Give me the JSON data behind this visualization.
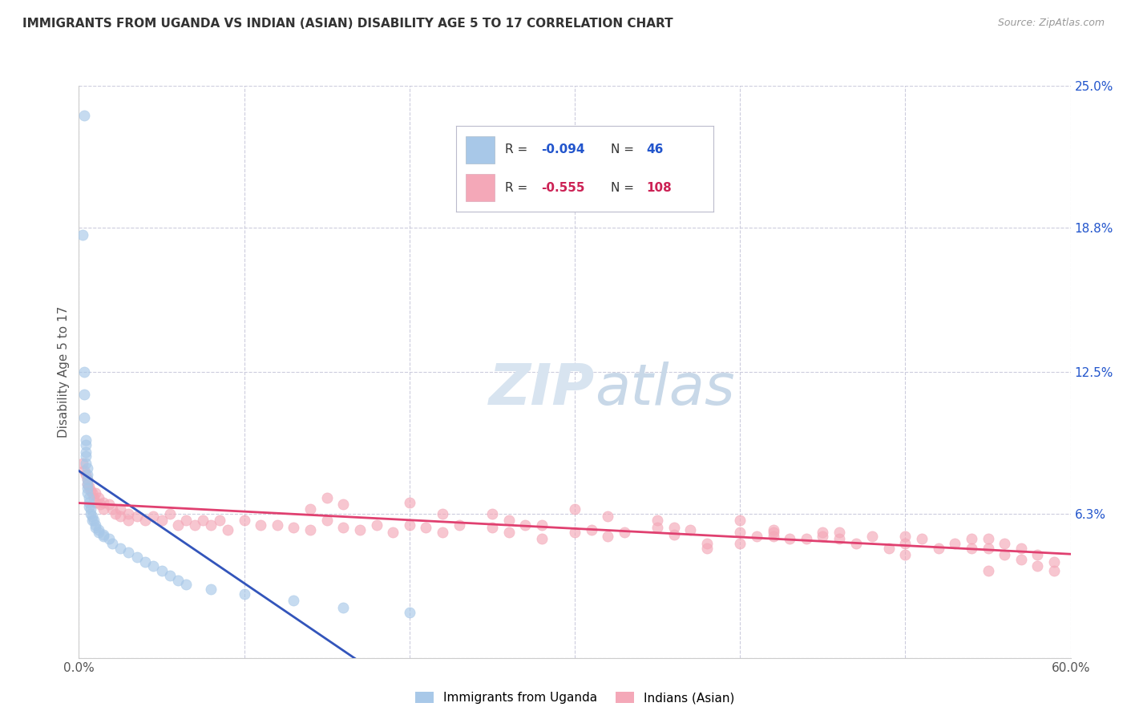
{
  "title": "IMMIGRANTS FROM UGANDA VS INDIAN (ASIAN) DISABILITY AGE 5 TO 17 CORRELATION CHART",
  "source": "Source: ZipAtlas.com",
  "ylabel": "Disability Age 5 to 17",
  "xmin": 0.0,
  "xmax": 0.6,
  "ymin": 0.0,
  "ymax": 0.25,
  "ytick_vals": [
    0.0,
    0.063,
    0.125,
    0.188,
    0.25
  ],
  "ytick_labels_right": [
    "",
    "6.3%",
    "12.5%",
    "18.8%",
    "25.0%"
  ],
  "xtick_vals": [
    0.0,
    0.1,
    0.2,
    0.3,
    0.4,
    0.5,
    0.6
  ],
  "xtick_labels": [
    "0.0%",
    "",
    "",
    "",
    "",
    "",
    "60.0%"
  ],
  "color_uganda": "#a8c8e8",
  "color_india": "#f4a8b8",
  "color_line_uganda": "#3355bb",
  "color_line_india": "#e04070",
  "color_line_dashed": "#aabbd0",
  "background_color": "#ffffff",
  "grid_color": "#ccccdd",
  "watermark_color": "#d8e4f0",
  "legend_r1_val": "-0.094",
  "legend_n1_val": "46",
  "legend_r2_val": "-0.555",
  "legend_n2_val": "108",
  "uganda_x": [
    0.003,
    0.002,
    0.003,
    0.003,
    0.003,
    0.004,
    0.004,
    0.004,
    0.004,
    0.004,
    0.005,
    0.005,
    0.005,
    0.005,
    0.005,
    0.005,
    0.006,
    0.006,
    0.006,
    0.007,
    0.007,
    0.008,
    0.008,
    0.009,
    0.01,
    0.01,
    0.012,
    0.012,
    0.015,
    0.015,
    0.018,
    0.02,
    0.025,
    0.03,
    0.035,
    0.04,
    0.045,
    0.05,
    0.055,
    0.06,
    0.065,
    0.08,
    0.1,
    0.13,
    0.16,
    0.2
  ],
  "uganda_y": [
    0.237,
    0.185,
    0.125,
    0.115,
    0.105,
    0.095,
    0.093,
    0.09,
    0.088,
    0.085,
    0.083,
    0.08,
    0.078,
    0.076,
    0.074,
    0.072,
    0.07,
    0.068,
    0.066,
    0.065,
    0.063,
    0.062,
    0.06,
    0.06,
    0.058,
    0.057,
    0.056,
    0.055,
    0.054,
    0.053,
    0.052,
    0.05,
    0.048,
    0.046,
    0.044,
    0.042,
    0.04,
    0.038,
    0.036,
    0.034,
    0.032,
    0.03,
    0.028,
    0.025,
    0.022,
    0.02
  ],
  "india_x": [
    0.002,
    0.003,
    0.004,
    0.005,
    0.005,
    0.006,
    0.007,
    0.008,
    0.009,
    0.01,
    0.01,
    0.012,
    0.013,
    0.015,
    0.015,
    0.018,
    0.02,
    0.022,
    0.025,
    0.025,
    0.03,
    0.03,
    0.035,
    0.04,
    0.045,
    0.05,
    0.055,
    0.06,
    0.065,
    0.07,
    0.075,
    0.08,
    0.085,
    0.09,
    0.1,
    0.11,
    0.12,
    0.13,
    0.14,
    0.15,
    0.16,
    0.17,
    0.18,
    0.19,
    0.2,
    0.21,
    0.22,
    0.23,
    0.25,
    0.26,
    0.27,
    0.28,
    0.3,
    0.31,
    0.32,
    0.33,
    0.35,
    0.36,
    0.37,
    0.38,
    0.4,
    0.41,
    0.42,
    0.43,
    0.45,
    0.46,
    0.47,
    0.48,
    0.49,
    0.5,
    0.5,
    0.51,
    0.52,
    0.53,
    0.54,
    0.54,
    0.55,
    0.55,
    0.56,
    0.56,
    0.57,
    0.57,
    0.58,
    0.58,
    0.59,
    0.59,
    0.4,
    0.42,
    0.44,
    0.3,
    0.32,
    0.2,
    0.22,
    0.15,
    0.16,
    0.35,
    0.36,
    0.45,
    0.46,
    0.25,
    0.26,
    0.28,
    0.14,
    0.5,
    0.55,
    0.38,
    0.4,
    0.42
  ],
  "india_y": [
    0.085,
    0.082,
    0.08,
    0.078,
    0.076,
    0.075,
    0.073,
    0.072,
    0.07,
    0.072,
    0.068,
    0.07,
    0.067,
    0.068,
    0.065,
    0.067,
    0.065,
    0.063,
    0.065,
    0.062,
    0.063,
    0.06,
    0.062,
    0.06,
    0.062,
    0.06,
    0.063,
    0.058,
    0.06,
    0.058,
    0.06,
    0.058,
    0.06,
    0.056,
    0.06,
    0.058,
    0.058,
    0.057,
    0.056,
    0.06,
    0.057,
    0.056,
    0.058,
    0.055,
    0.058,
    0.057,
    0.055,
    0.058,
    0.057,
    0.055,
    0.058,
    0.052,
    0.055,
    0.056,
    0.053,
    0.055,
    0.057,
    0.054,
    0.056,
    0.05,
    0.055,
    0.053,
    0.055,
    0.052,
    0.053,
    0.055,
    0.05,
    0.053,
    0.048,
    0.053,
    0.05,
    0.052,
    0.048,
    0.05,
    0.048,
    0.052,
    0.048,
    0.052,
    0.045,
    0.05,
    0.043,
    0.048,
    0.04,
    0.045,
    0.038,
    0.042,
    0.06,
    0.056,
    0.052,
    0.065,
    0.062,
    0.068,
    0.063,
    0.07,
    0.067,
    0.06,
    0.057,
    0.055,
    0.052,
    0.063,
    0.06,
    0.058,
    0.065,
    0.045,
    0.038,
    0.048,
    0.05,
    0.053
  ]
}
